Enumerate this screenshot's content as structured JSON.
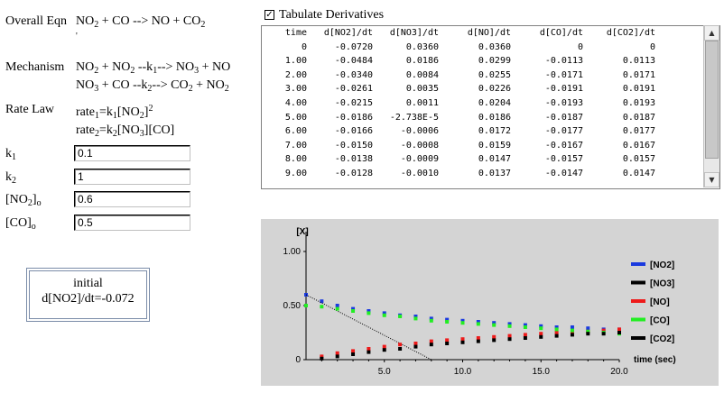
{
  "overall": {
    "label": "Overall Eqn",
    "equation": [
      {
        "t": "NO"
      },
      {
        "sub": "2"
      },
      {
        "t": " + CO --> NO + CO"
      },
      {
        "sub": "2"
      }
    ]
  },
  "mechanism": {
    "label": "Mechanism",
    "step1": [
      {
        "t": "NO"
      },
      {
        "sub": "2"
      },
      {
        "t": " + NO"
      },
      {
        "sub": "2"
      },
      {
        "t": " --k"
      },
      {
        "sub": "1"
      },
      {
        "t": "--> NO"
      },
      {
        "sub": "3"
      },
      {
        "t": " + NO"
      }
    ],
    "step2": [
      {
        "t": "NO"
      },
      {
        "sub": "3"
      },
      {
        "t": " + CO --k"
      },
      {
        "sub": "2"
      },
      {
        "t": "--> CO"
      },
      {
        "sub": "2"
      },
      {
        "t": " + NO"
      },
      {
        "sub": "2"
      }
    ]
  },
  "ratelaw": {
    "label": "Rate Law",
    "rate1": [
      {
        "t": "rate"
      },
      {
        "sub": "1"
      },
      {
        "t": "=k"
      },
      {
        "sub": "1"
      },
      {
        "t": "[NO"
      },
      {
        "sub": "2"
      },
      {
        "t": "]"
      },
      {
        "sup": "2"
      }
    ],
    "rate2": [
      {
        "t": "rate"
      },
      {
        "sub": "2"
      },
      {
        "t": "=k"
      },
      {
        "sub": "2"
      },
      {
        "t": "[NO"
      },
      {
        "sub": "3"
      },
      {
        "t": "][CO]"
      }
    ]
  },
  "params": [
    {
      "label": [
        {
          "t": "k"
        },
        {
          "sub": "1"
        }
      ],
      "value": "0.1"
    },
    {
      "label": [
        {
          "t": "k"
        },
        {
          "sub": "2"
        }
      ],
      "value": "1"
    },
    {
      "label": [
        {
          "t": "[NO"
        },
        {
          "sub": "2"
        },
        {
          "t": "]"
        },
        {
          "sub": "o"
        }
      ],
      "value": "0.6"
    },
    {
      "label": [
        {
          "t": "[CO]"
        },
        {
          "sub": "o"
        }
      ],
      "value": "0.5"
    }
  ],
  "initial_box": {
    "title": "initial",
    "value": "d[NO2]/dt=-0.072"
  },
  "tabulate": {
    "checked": true,
    "label": "Tabulate Derivatives"
  },
  "table": {
    "headers": [
      "time",
      "d[NO2]/dt",
      "d[NO3]/dt",
      "d[NO]/dt",
      "d[CO]/dt",
      "d[CO2]/dt"
    ],
    "rows": [
      [
        "0",
        "-0.0720",
        "0.0360",
        "0.0360",
        "0",
        "0"
      ],
      [
        "1.00",
        "-0.0484",
        "0.0186",
        "0.0299",
        "-0.0113",
        "0.0113"
      ],
      [
        "2.00",
        "-0.0340",
        "0.0084",
        "0.0255",
        "-0.0171",
        "0.0171"
      ],
      [
        "3.00",
        "-0.0261",
        "0.0035",
        "0.0226",
        "-0.0191",
        "0.0191"
      ],
      [
        "4.00",
        "-0.0215",
        "0.0011",
        "0.0204",
        "-0.0193",
        "0.0193"
      ],
      [
        "5.00",
        "-0.0186",
        "-2.738E-5",
        "0.0186",
        "-0.0187",
        "0.0187"
      ],
      [
        "6.00",
        "-0.0166",
        "-0.0006",
        "0.0172",
        "-0.0177",
        "0.0177"
      ],
      [
        "7.00",
        "-0.0150",
        "-0.0008",
        "0.0159",
        "-0.0167",
        "0.0167"
      ],
      [
        "8.00",
        "-0.0138",
        "-0.0009",
        "0.0147",
        "-0.0157",
        "0.0157"
      ],
      [
        "9.00",
        "-0.0128",
        "-0.0010",
        "0.0137",
        "-0.0147",
        "0.0147"
      ]
    ],
    "scroll_up_icon": "triangle-up",
    "scroll_down_icon": "triangle-down"
  },
  "chart_data": {
    "type": "scatter",
    "ylabel": "[X]",
    "xlabel": "time (sec)",
    "xlim": [
      0,
      20
    ],
    "ylim": [
      0,
      1.1
    ],
    "xticks": [
      5,
      10,
      15,
      20
    ],
    "xtick_labels": [
      "5.0",
      "10.0",
      "15.0",
      "20.0"
    ],
    "yticks": [
      0,
      0.5,
      1.0
    ],
    "ytick_labels": [
      "0",
      "0.50",
      "1.00"
    ],
    "grid": false,
    "legend_position": "right",
    "background": "#d4d4d4",
    "series": [
      {
        "name": "[NO2]",
        "color": "#1a3adf",
        "style": "points",
        "x": [
          0,
          1,
          2,
          3,
          4,
          5,
          6,
          7,
          8,
          9,
          10,
          11,
          12,
          13,
          14,
          15,
          16,
          17,
          18,
          19,
          20
        ],
        "y": [
          0.6,
          0.54,
          0.5,
          0.47,
          0.45,
          0.43,
          0.41,
          0.4,
          0.38,
          0.37,
          0.36,
          0.35,
          0.34,
          0.33,
          0.32,
          0.31,
          0.3,
          0.3,
          0.29,
          0.28,
          0.28
        ]
      },
      {
        "name": "[NO3]",
        "color": "#000000",
        "style": "line",
        "x": [
          0,
          8
        ],
        "y": [
          0.6,
          0.0
        ]
      },
      {
        "name": "[NO]",
        "color": "#ee1a1a",
        "style": "points",
        "x": [
          1,
          2,
          3,
          4,
          5,
          6,
          7,
          8,
          9,
          10,
          11,
          12,
          13,
          14,
          15,
          16,
          17,
          18,
          19,
          20
        ],
        "y": [
          0.03,
          0.06,
          0.08,
          0.1,
          0.12,
          0.14,
          0.15,
          0.17,
          0.18,
          0.19,
          0.2,
          0.21,
          0.22,
          0.23,
          0.24,
          0.25,
          0.26,
          0.26,
          0.27,
          0.28
        ]
      },
      {
        "name": "[CO]",
        "color": "#22ee22",
        "style": "points",
        "x": [
          0,
          1,
          2,
          3,
          4,
          5,
          6,
          7,
          8,
          9,
          10,
          11,
          12,
          13,
          14,
          15,
          16,
          17,
          18,
          19,
          20
        ],
        "y": [
          0.5,
          0.49,
          0.47,
          0.45,
          0.43,
          0.41,
          0.4,
          0.38,
          0.36,
          0.35,
          0.34,
          0.33,
          0.32,
          0.31,
          0.3,
          0.29,
          0.28,
          0.27,
          0.26,
          0.25,
          0.24
        ]
      },
      {
        "name": "[CO2]",
        "color": "#000000",
        "style": "points",
        "x": [
          1,
          2,
          3,
          4,
          5,
          6,
          7,
          8,
          9,
          10,
          11,
          12,
          13,
          14,
          15,
          16,
          17,
          18,
          19,
          20
        ],
        "y": [
          0.01,
          0.03,
          0.05,
          0.07,
          0.09,
          0.1,
          0.12,
          0.14,
          0.15,
          0.16,
          0.17,
          0.18,
          0.19,
          0.2,
          0.21,
          0.22,
          0.23,
          0.24,
          0.24,
          0.25
        ]
      }
    ]
  }
}
